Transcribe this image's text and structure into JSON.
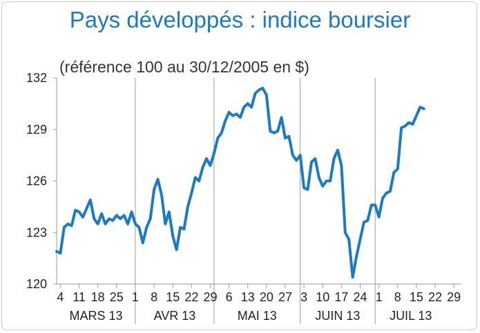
{
  "title": "Pays développés : indice boursier",
  "subtitle": "(référence 100 au 30/12/2005 en $)",
  "chart_data": {
    "type": "line",
    "title": "Pays développés : indice boursier",
    "subtitle": "(référence 100 au 30/12/2005 en $)",
    "ylim": [
      120,
      132
    ],
    "yticks": [
      120,
      123,
      126,
      129,
      132
    ],
    "grid": "vertical month separators",
    "months": [
      {
        "label": "MARS 13",
        "start": 0,
        "end": 21,
        "days": [
          {
            "label": "4",
            "x": 1
          },
          {
            "label": "11",
            "x": 6
          },
          {
            "label": "18",
            "x": 11
          },
          {
            "label": "25",
            "x": 16
          }
        ]
      },
      {
        "label": "AVR 13",
        "start": 21,
        "end": 42,
        "days": [
          {
            "label": "1",
            "x": 21
          },
          {
            "label": "8",
            "x": 26
          },
          {
            "label": "15",
            "x": 31
          },
          {
            "label": "22",
            "x": 36
          },
          {
            "label": "29",
            "x": 41
          }
        ]
      },
      {
        "label": "MAI 13",
        "start": 42,
        "end": 65,
        "days": [
          {
            "label": "6",
            "x": 46
          },
          {
            "label": "13",
            "x": 51
          },
          {
            "label": "20",
            "x": 56
          },
          {
            "label": "27",
            "x": 61
          }
        ]
      },
      {
        "label": "JUIN 13",
        "start": 65,
        "end": 85,
        "days": [
          {
            "label": "3",
            "x": 66
          },
          {
            "label": "10",
            "x": 71
          },
          {
            "label": "17",
            "x": 76
          },
          {
            "label": "24",
            "x": 81
          }
        ]
      },
      {
        "label": "JUIL 13",
        "start": 85,
        "end": 104,
        "days": [
          {
            "label": "1",
            "x": 86
          },
          {
            "label": "8",
            "x": 91
          },
          {
            "label": "15",
            "x": 96
          },
          {
            "label": "22",
            "x": 101
          },
          {
            "label": "29",
            "x": 106
          }
        ]
      }
    ],
    "xlim": [
      0,
      108
    ],
    "series": [
      {
        "color": "#1a7ac8",
        "values": [
          121.9,
          121.8,
          123.3,
          123.5,
          123.4,
          124.3,
          124.2,
          123.9,
          124.4,
          124.9,
          123.8,
          123.5,
          124.1,
          123.5,
          123.8,
          123.7,
          124.0,
          123.8,
          124.0,
          123.5,
          124.2,
          123.5,
          123.3,
          122.4,
          123.3,
          123.8,
          125.5,
          126.1,
          125.2,
          123.5,
          124.2,
          122.8,
          122.0,
          123.3,
          123.2,
          124.5,
          125.3,
          126.2,
          126.0,
          126.8,
          127.3,
          126.9,
          127.6,
          128.5,
          128.8,
          129.5,
          130.0,
          129.8,
          129.9,
          129.7,
          130.3,
          130.5,
          130.3,
          131.1,
          131.3,
          131.4,
          131.0,
          128.9,
          128.8,
          128.9,
          129.7,
          128.5,
          128.6,
          127.5,
          127.2,
          127.5,
          125.6,
          125.5,
          127.1,
          127.3,
          126.2,
          125.7,
          126.0,
          126.0,
          127.3,
          127.8,
          126.9,
          123.0,
          122.6,
          120.4,
          121.6,
          122.6,
          123.6,
          123.7,
          124.6,
          124.6,
          123.9,
          125.0,
          125.3,
          125.4,
          126.5,
          126.7,
          129.1,
          129.2,
          129.4,
          129.3,
          129.8,
          130.3,
          130.2
        ]
      }
    ]
  }
}
